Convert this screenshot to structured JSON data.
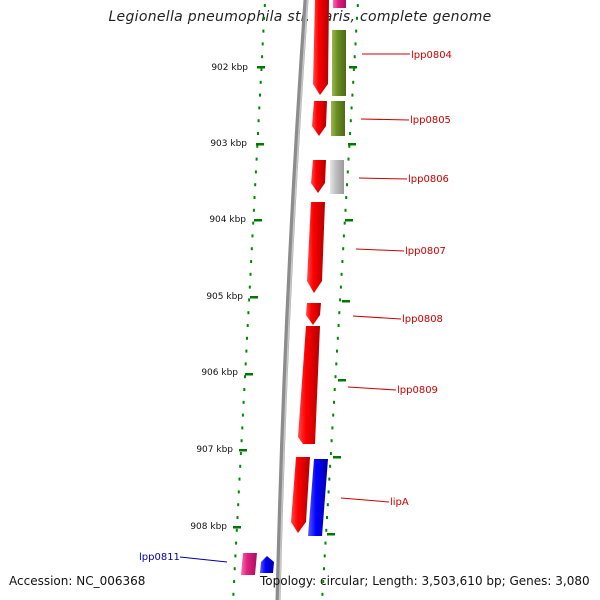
{
  "title": "Legionella pneumophila str. Paris, complete genome",
  "footer": {
    "accession": "Accession: NC_006368",
    "summary": "Topology: circular; Length: 3,503,610 bp; Genes: 3,080"
  },
  "colors": {
    "cds_forward": "#ff0000",
    "cds_reverse_red": "#ff0000",
    "cog_green": "#6b8e23",
    "cog_grey": "#c0c0c0",
    "cog_blue": "#0000ff",
    "cog_pink": "#e0207f",
    "tick": "#007700",
    "label_red": "#cc0000",
    "label_blue": "#0000aa",
    "backbone": "#888888"
  },
  "ticks": [
    "902 kbp",
    "903 kbp",
    "904 kbp",
    "905 kbp",
    "906 kbp",
    "907 kbp",
    "908 kbp"
  ],
  "genes": [
    {
      "name": "lpp0804",
      "color": "label_red"
    },
    {
      "name": "lpp0805",
      "color": "label_red"
    },
    {
      "name": "lpp0806",
      "color": "label_red"
    },
    {
      "name": "lpp0807",
      "color": "label_red"
    },
    {
      "name": "lpp0808",
      "color": "label_red"
    },
    {
      "name": "lpp0809",
      "color": "label_red"
    },
    {
      "name": "lipA",
      "color": "label_red"
    },
    {
      "name": "lpp0811",
      "color": "label_blue"
    }
  ]
}
